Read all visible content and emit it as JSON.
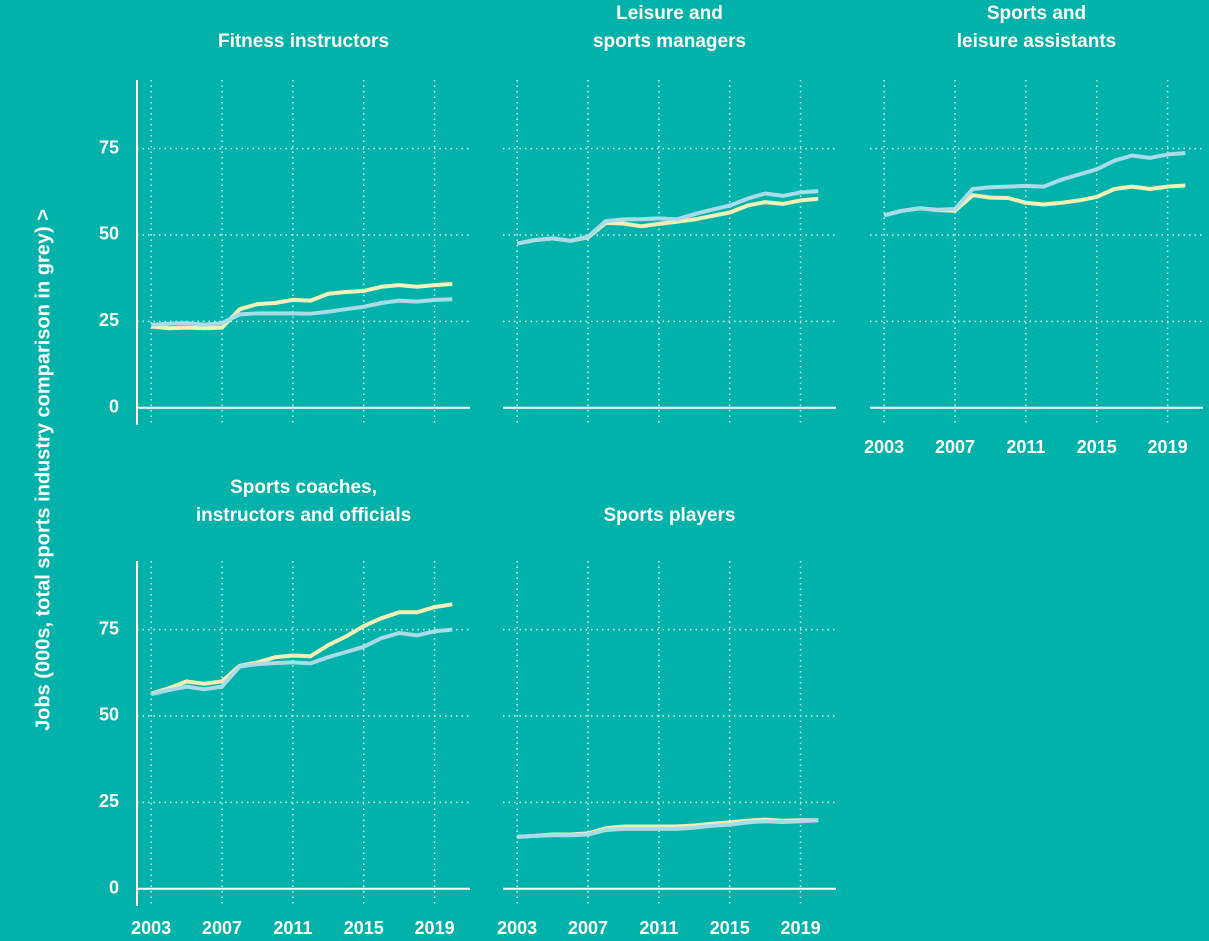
{
  "y_label": "Jobs (000s, total sports industry comparison in grey) >",
  "chart_data": [
    {
      "type": "line",
      "title": "Fitness instructors",
      "x": [
        2003,
        2004,
        2005,
        2006,
        2007,
        2008,
        2009,
        2010,
        2011,
        2012,
        2013,
        2014,
        2015,
        2016,
        2017,
        2018,
        2019,
        2020
      ],
      "series": [
        {
          "color": "#f3f1b5",
          "values": [
            23.5,
            23,
            23.2,
            23,
            23.2,
            28.5,
            30,
            30.3,
            31.2,
            31,
            33,
            33.5,
            33.8,
            35,
            35.5,
            35,
            35.5,
            35.8
          ]
        },
        {
          "color": "#a9dbe8",
          "values": [
            24,
            24.3,
            24.5,
            24,
            24.5,
            27,
            27.3,
            27.3,
            27.3,
            27.2,
            27.8,
            28.5,
            29.2,
            30.3,
            31,
            30.7,
            31.2,
            31.4
          ]
        }
      ],
      "xlim": [
        2002.2,
        2021
      ],
      "xticks": [
        2003,
        2007,
        2011,
        2015,
        2019
      ],
      "ylim": [
        -5,
        96
      ],
      "yticks": [
        0,
        25,
        50,
        75
      ],
      "grid": true
    },
    {
      "type": "line",
      "title": "Leisure and\nsports managers",
      "x": [
        2003,
        2004,
        2005,
        2006,
        2007,
        2008,
        2009,
        2010,
        2011,
        2012,
        2013,
        2014,
        2015,
        2016,
        2017,
        2018,
        2019,
        2020
      ],
      "series": [
        {
          "color": "#f3f1b5",
          "values": [
            47.5,
            48.5,
            49,
            48.3,
            49.3,
            53.5,
            53.3,
            52.5,
            53.2,
            53.8,
            54.5,
            55.5,
            56.5,
            58.5,
            59.5,
            59,
            60,
            60.5
          ]
        },
        {
          "color": "#a9dbe8",
          "values": [
            47.5,
            48.5,
            49,
            48.3,
            49.5,
            54,
            54.5,
            54.6,
            54.8,
            54.5,
            56,
            57.3,
            58.5,
            60.5,
            62,
            61.3,
            62.3,
            62.7
          ]
        }
      ],
      "xlim": [
        2002.2,
        2021
      ],
      "xticks": [
        2003,
        2007,
        2011,
        2015,
        2019
      ],
      "ylim": [
        -5,
        96
      ],
      "yticks": [
        0,
        25,
        50,
        75
      ],
      "grid": true
    },
    {
      "type": "line",
      "title": "Sports and\nleisure assistants",
      "x": [
        2003,
        2004,
        2005,
        2006,
        2007,
        2008,
        2009,
        2010,
        2011,
        2012,
        2013,
        2014,
        2015,
        2016,
        2017,
        2018,
        2019,
        2020
      ],
      "series": [
        {
          "color": "#f3f1b5",
          "values": [
            55.7,
            57,
            57.7,
            57.2,
            57,
            61.5,
            60.8,
            60.7,
            59.3,
            58.8,
            59.3,
            60,
            61,
            63.3,
            64,
            63.3,
            64,
            64.3
          ]
        },
        {
          "color": "#a9dbe8",
          "values": [
            55.7,
            57,
            57.7,
            57.3,
            57.5,
            63.3,
            63.8,
            64,
            64.2,
            64,
            66,
            67.5,
            69,
            71.5,
            73,
            72.3,
            73.3,
            73.7
          ]
        }
      ],
      "xlim": [
        2002.2,
        2021
      ],
      "xticks": [
        2003,
        2007,
        2011,
        2015,
        2019
      ],
      "ylim": [
        -5,
        96
      ],
      "yticks": [
        0,
        25,
        50,
        75
      ],
      "grid": true
    },
    {
      "type": "line",
      "title": "Sports coaches,\ninstructors and officials",
      "x": [
        2003,
        2004,
        2005,
        2006,
        2007,
        2008,
        2009,
        2010,
        2011,
        2012,
        2013,
        2014,
        2015,
        2016,
        2017,
        2018,
        2019,
        2020
      ],
      "series": [
        {
          "color": "#f3f1b5",
          "values": [
            56.5,
            58,
            60,
            59.3,
            60,
            64.5,
            65.5,
            67,
            67.5,
            67.3,
            70.5,
            73,
            76,
            78.3,
            80,
            80,
            81.5,
            82.3
          ]
        },
        {
          "color": "#a9dbe8",
          "values": [
            56.3,
            57.5,
            58.5,
            57.7,
            58.5,
            64.3,
            65,
            65.3,
            65.5,
            65.2,
            67,
            68.5,
            70,
            72.5,
            74,
            73.3,
            74.5,
            75
          ]
        }
      ],
      "xlim": [
        2002.2,
        2021
      ],
      "xticks": [
        2003,
        2007,
        2011,
        2015,
        2019
      ],
      "ylim": [
        -5,
        96
      ],
      "yticks": [
        0,
        25,
        50,
        75
      ],
      "grid": true
    },
    {
      "type": "line",
      "title": "Sports players",
      "x": [
        2003,
        2004,
        2005,
        2006,
        2007,
        2008,
        2009,
        2010,
        2011,
        2012,
        2013,
        2014,
        2015,
        2016,
        2017,
        2018,
        2019,
        2020
      ],
      "series": [
        {
          "color": "#f3f1b5",
          "values": [
            15,
            15.3,
            15.7,
            15.7,
            16,
            17.5,
            18,
            18,
            18,
            18,
            18.3,
            18.8,
            19.2,
            19.7,
            20,
            19.7,
            19.8,
            19.8
          ]
        },
        {
          "color": "#a9dbe8",
          "values": [
            15,
            15.3,
            15.5,
            15.5,
            15.7,
            17,
            17.3,
            17.3,
            17.3,
            17.3,
            17.7,
            18.2,
            18.5,
            19.2,
            19.5,
            19.3,
            19.5,
            19.8
          ]
        }
      ],
      "xlim": [
        2002.2,
        2021
      ],
      "xticks": [
        2003,
        2007,
        2011,
        2015,
        2019
      ],
      "ylim": [
        -5,
        96
      ],
      "yticks": [
        0,
        25,
        50,
        75
      ],
      "grid": true
    }
  ]
}
